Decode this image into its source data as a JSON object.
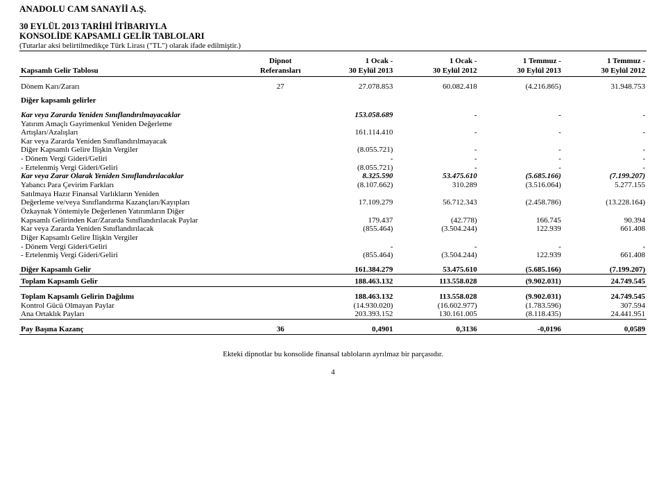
{
  "company": "ANADOLU CAM SANAYİİ A.Ş.",
  "title1": "30 EYLÜL 2013 TARİHİ İTİBARIYLA",
  "title2": "KONSOLİDE KAPSAMLI GELİR TABLOLARI",
  "subtitle": "(Tutarlar aksi belirtilmedikçe Türk Lirası (\"TL\") olarak ifade edilmiştir.)",
  "head": {
    "c0": "Kapsamlı Gelir Tablosu",
    "c1a": "Dipnot",
    "c1b": "Referansları",
    "c2a": "1 Ocak -",
    "c2b": "30 Eylül 2013",
    "c3a": "1 Ocak -",
    "c3b": "30 Eylül 2012",
    "c4a": "1 Temmuz -",
    "c4b": "30 Eylül 2013",
    "c5a": "1 Temmuz -",
    "c5b": "30 Eylül 2012"
  },
  "r": {
    "donem": {
      "l": "Dönem Karı/Zararı",
      "ref": "27",
      "v": [
        "27.078.853",
        "60.082.418",
        "(4.216.865)",
        "31.948.753"
      ]
    },
    "dkg": {
      "l": "Diğer kapsamlı gelirler"
    },
    "kvz1": {
      "l": "Kar veya Zararda Yeniden Sınıflandırılmayacaklar",
      "v": [
        "153.058.689",
        "-",
        "-",
        "-"
      ]
    },
    "yat1": {
      "l": "Yatırım Amaçlı Gayrimenkul Yeniden Değerleme"
    },
    "yat2": {
      "l": "Artışları/Azalışları",
      "v": [
        "161.114.410",
        "-",
        "-",
        "-"
      ]
    },
    "kvz2a": {
      "l": "Kar veya Zararda Yeniden Sınıflandırılmayacak"
    },
    "kvz2b": {
      "l": "Diğer Kapsamlı Gelire İlişkin Vergiler",
      "v": [
        "(8.055.721)",
        "-",
        "-",
        "-"
      ]
    },
    "dvgg1": {
      "l": "- Dönem Vergi Gideri/Geliri",
      "v": [
        "-",
        "-",
        "-",
        "-"
      ]
    },
    "evgg1": {
      "l": "- Ertelenmiş Vergi Gideri/Geliri",
      "v": [
        "(8.055.721)",
        "-",
        "-",
        "-"
      ]
    },
    "kvzo": {
      "l": "Kar veya Zarar Olarak Yeniden Sınıflandırılacaklar",
      "v": [
        "8.325.590",
        "53.475.610",
        "(5.685.166)",
        "(7.199.207)"
      ]
    },
    "ypcf": {
      "l": "Yabancı Para Çevirim Farkları",
      "v": [
        "(8.107.662)",
        "310.289",
        "(3.516.064)",
        "5.277.155"
      ]
    },
    "shfv1": {
      "l": "Satılmaya Hazır Finansal Varlıkların Yeniden"
    },
    "shfv2": {
      "l": "Değerleme ve/veya Sınıflandırma Kazançları/Kayıpları",
      "v": [
        "17.109.279",
        "56.712.343",
        "(2.458.786)",
        "(13.228.164)"
      ]
    },
    "oy1": {
      "l": "Özkaynak Yöntemiyle Değerlenen Yatırımların Diğer"
    },
    "oy2": {
      "l": "Kapsamlı Gelirinden Kar/Zararda Sınıflandırılacak Paylar",
      "v": [
        "179.437",
        "(42.778)",
        "166.745",
        "90.394"
      ]
    },
    "kvzs": {
      "l": "Kar veya Zararda Yeniden Sınıflandırılacak",
      "v": [
        "(855.464)",
        "(3.504.244)",
        "122.939",
        "661.408"
      ]
    },
    "dkgi": {
      "l": "Diğer Kapsamlı Gelire İlişkin Vergiler"
    },
    "dvgg2": {
      "l": "- Dönem Vergi Gideri/Geliri",
      "v": [
        "-",
        "-",
        "-",
        "-"
      ]
    },
    "evgg2": {
      "l": "- Ertelenmiş Vergi Gideri/Geliri",
      "v": [
        "(855.464)",
        "(3.504.244)",
        "122.939",
        "661.408"
      ]
    },
    "dkg2": {
      "l": "Diğer Kapsamlı Gelir",
      "v": [
        "161.384.279",
        "53.475.610",
        "(5.685.166)",
        "(7.199.207)"
      ]
    },
    "tkg": {
      "l": "Toplam Kapsamlı Gelir",
      "v": [
        "188.463.132",
        "113.558.028",
        "(9.902.031)",
        "24.749.545"
      ]
    },
    "tkgd": {
      "l": "Toplam Kapsamlı Gelirin Dağılımı",
      "v": [
        "188.463.132",
        "113.558.028",
        "(9.902.031)",
        "24.749.545"
      ]
    },
    "kgop": {
      "l": "Kontrol Gücü Olmayan Paylar",
      "v": [
        "(14.930.020)",
        "(16.602.977)",
        "(1.783.596)",
        "307.594"
      ]
    },
    "aop": {
      "l": "Ana Ortaklık Payları",
      "v": [
        "203.393.152",
        "130.161.005",
        "(8.118.435)",
        "24.441.951"
      ]
    },
    "pbk": {
      "l": "Pay Başına Kazanç",
      "ref": "36",
      "v": [
        "0,4901",
        "0,3136",
        "-0,0196",
        "0,0589"
      ]
    }
  },
  "footer": "Ekteki dipnotlar bu konsolide finansal tabloların ayrılmaz bir parçasıdır.",
  "pagenum": "4"
}
